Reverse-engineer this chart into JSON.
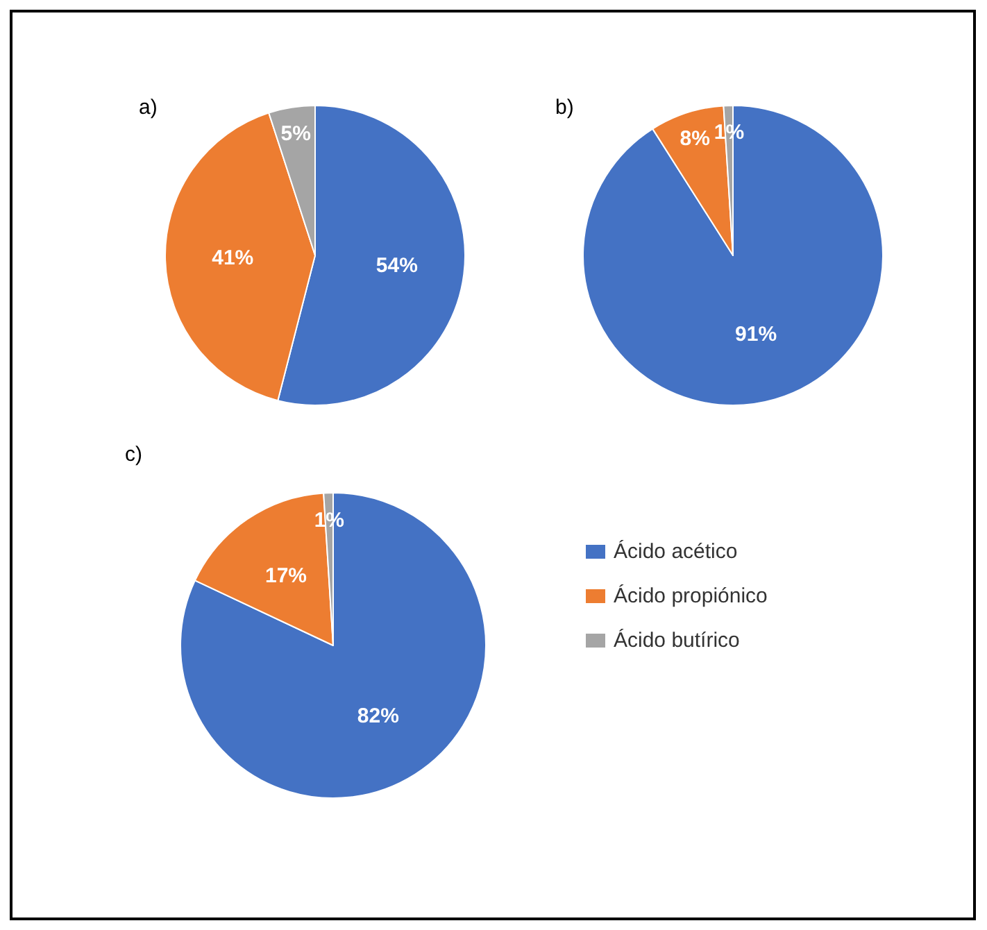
{
  "chart_data": [
    {
      "type": "pie",
      "title": "a)",
      "values": [
        54,
        41,
        5
      ],
      "colors": [
        "#4472c4",
        "#ed7d31",
        "#a5a5a5"
      ],
      "value_labels": [
        "54%",
        "41%",
        "5%"
      ],
      "legend": false
    },
    {
      "type": "pie",
      "title": "b)",
      "values": [
        91,
        8,
        1
      ],
      "colors": [
        "#4472c4",
        "#ed7d31",
        "#a5a5a5"
      ],
      "value_labels": [
        "91%",
        "8%",
        "1%"
      ],
      "legend": false
    },
    {
      "type": "pie",
      "title": "c)",
      "categories": [
        "Ácido acético",
        "Ácido propiónico",
        "Ácido butírico"
      ],
      "values": [
        82,
        17,
        1
      ],
      "colors": [
        "#4472c4",
        "#ed7d31",
        "#a5a5a5"
      ],
      "value_labels": [
        "82%",
        "17%",
        "1%"
      ],
      "legend": "right"
    }
  ]
}
